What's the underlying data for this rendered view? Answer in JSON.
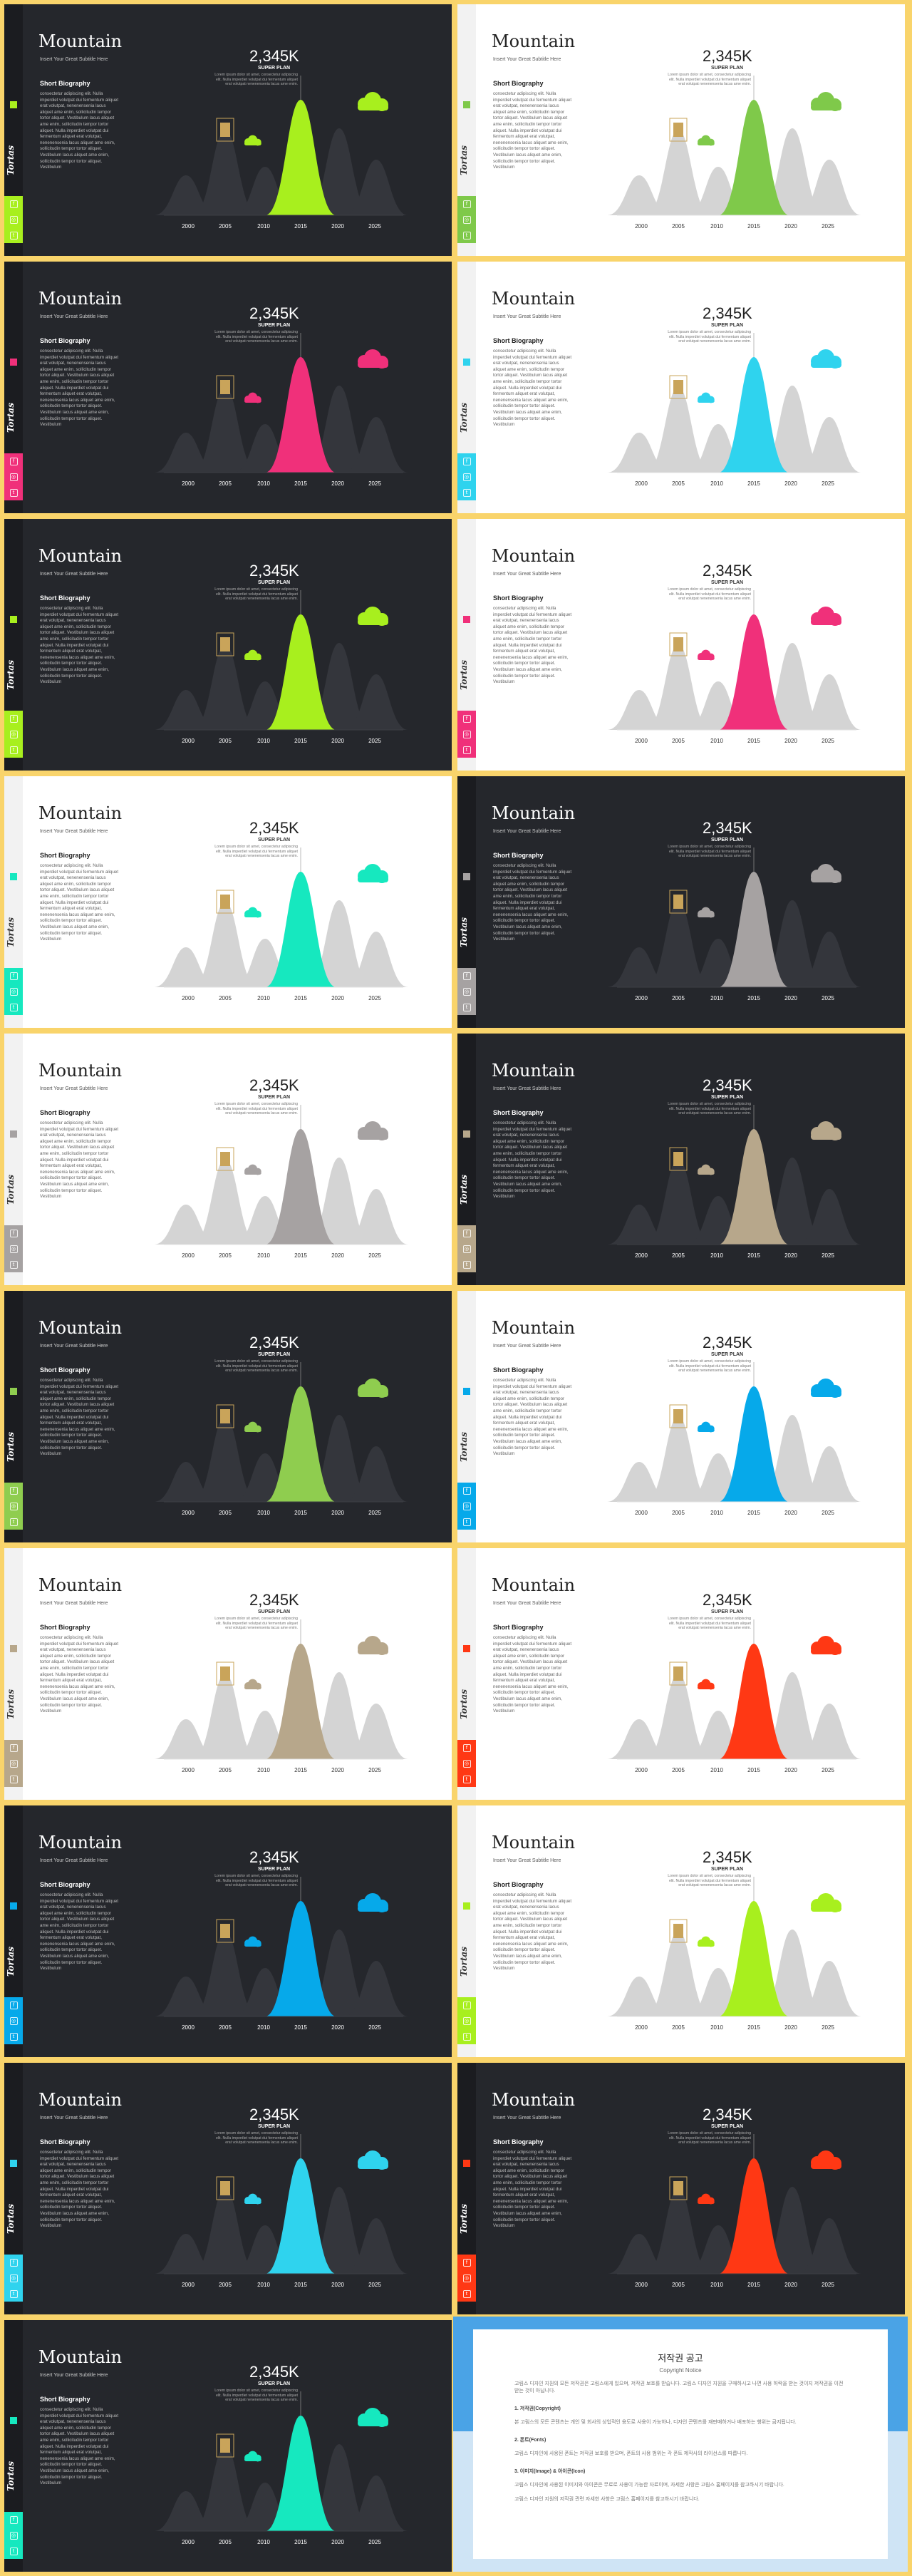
{
  "slide": {
    "title": "Mountain",
    "subtitle": "Insert Your Great Subtitle Here",
    "bio_heading": "Short Biography",
    "bio_text": "consectetur adipiscing elit. Nulla imperdiet volutpat dui fermentum aliquet erat volutpat, nenenensenia lacus aliquet ame enim, sollicitudin tempor tortor aliquet. Vestibulum lacus aliquet ame enim, sollicitudin tempor tortor aliquet. Nulla imperdiet volutpat dui fermentum aliquet erat volutpat, nenenensenia lacus aliquet ame enim, sollicitudin tempor tortor aliquet. Vestibulum lacus aliquet ame enim, sollicitudin tempor tortor aliquet. Vestibulum",
    "big_number": "2,345K",
    "label": "SUPER PLAN",
    "desc": "Lorem ipsum dolor sit amet, consectetur adipiscing elit. Nulla imperdiet volutpat dui fermentum aliquet erat volutpat nenenensenia lacus ame enim.",
    "logo": "Tortas",
    "social_icons": [
      "facebook-icon",
      "instagram-icon",
      "twitter-icon"
    ]
  },
  "chart_data": {
    "type": "area",
    "x": [
      "2000",
      "2005",
      "2010",
      "2015",
      "2020",
      "2025"
    ]
  },
  "slides": [
    {
      "theme": "dark",
      "accent": "#a8ef1e"
    },
    {
      "theme": "light",
      "accent": "#7fc94a"
    },
    {
      "theme": "dark",
      "accent": "#f0307a"
    },
    {
      "theme": "light",
      "accent": "#2fd3ee"
    },
    {
      "theme": "dark",
      "accent": "#a8ef1e"
    },
    {
      "theme": "light",
      "accent": "#f0307a"
    },
    {
      "theme": "light",
      "accent": "#16e8bf"
    },
    {
      "theme": "dark",
      "accent": "#a6a2a2"
    },
    {
      "theme": "light",
      "accent": "#a6a2a2"
    },
    {
      "theme": "dark",
      "accent": "#b7a78b"
    },
    {
      "theme": "dark",
      "accent": "#8fcd4f"
    },
    {
      "theme": "light",
      "accent": "#06a9ea"
    },
    {
      "theme": "light",
      "accent": "#b7a78b"
    },
    {
      "theme": "light",
      "accent": "#ff3814"
    },
    {
      "theme": "dark",
      "accent": "#06a9ea"
    },
    {
      "theme": "light",
      "accent": "#a8ef1e"
    },
    {
      "theme": "dark",
      "accent": "#2fd3ee"
    },
    {
      "theme": "dark",
      "accent": "#ff3814"
    },
    {
      "theme": "dark",
      "accent": "#16e8bf"
    }
  ],
  "notice": {
    "title": "저작권 공고",
    "subtitle": "Copyright Notice",
    "intro": "고림스 디자인 지원의 모든 저작권은 고림스에게 있으며, 저작권 보호를 받습니다. 고림스 디자인 지원을 구매하시고 나면 사용 허락을 받는 것이지 저작권을 이전 받는 것이 아닙니다.",
    "sections": [
      {
        "heading": "1. 저작권(Copyright)",
        "text": "본 고림스의 모든 콘텐츠는 개인 및 회사의 상업적인 용도로 사용이 가능하나, 디자인 콘텐츠를 재판매하거나 배포하는 행위는 금지됩니다."
      },
      {
        "heading": "2. 폰트(Fonts)",
        "text": "고림스 디자인에 사용된 폰트는 저작권 보호를 받으며, 폰트의 사용 범위는 각 폰트 제작사의 라이선스를 따릅니다."
      },
      {
        "heading": "3. 이미지(Image) & 아이콘(Icon)",
        "text": "고림스 디자인에 사용된 이미지와 아이콘은 무료로 사용이 가능한 자료이며, 자세한 사항은 고림스 홈페이지를 참고하시기 바랍니다."
      }
    ],
    "outro": "고림스 디자인 지원의 저작권 관련 자세한 사항은 고림스 홈페이지를 참고하시기 바랍니다."
  }
}
